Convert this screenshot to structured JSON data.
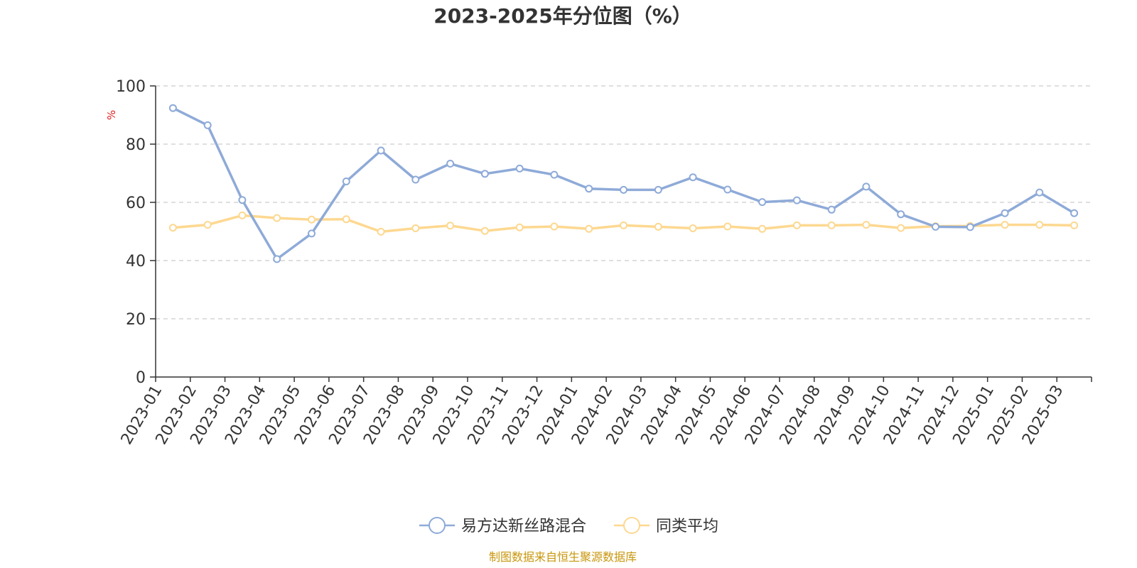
{
  "title": "2023-2025年分位图（%）",
  "source": "制图数据来自恒生聚源数据库",
  "chart_data": {
    "type": "line",
    "title": "2023-2025年分位图（%）",
    "ylabel": "%",
    "ylim": [
      0,
      100
    ],
    "yticks": [
      0,
      20,
      40,
      60,
      80,
      100
    ],
    "grid": true,
    "legend_position": "bottom",
    "categories": [
      "2023-01",
      "2023-02",
      "2023-03",
      "2023-04",
      "2023-05",
      "2023-06",
      "2023-07",
      "2023-08",
      "2023-09",
      "2023-10",
      "2023-11",
      "2023-12",
      "2024-01",
      "2024-02",
      "2024-03",
      "2024-04",
      "2024-05",
      "2024-06",
      "2024-07",
      "2024-08",
      "2024-09",
      "2024-10",
      "2024-11",
      "2024-12",
      "2025-01",
      "2025-02",
      "2025-03"
    ],
    "series": [
      {
        "name": "易方达新丝路混合",
        "color": "#8eaad8",
        "values": [
          92.4,
          86.5,
          60.8,
          40.5,
          49.3,
          67.2,
          77.8,
          67.8,
          73.3,
          69.8,
          71.6,
          69.5,
          64.7,
          64.3,
          64.3,
          68.6,
          64.4,
          60.1,
          60.7,
          57.5,
          65.4,
          55.9,
          51.6,
          51.5,
          56.3,
          63.4,
          56.3
        ]
      },
      {
        "name": "同类平均",
        "color": "#fdd890",
        "values": [
          51.3,
          52.3,
          55.5,
          54.6,
          54.1,
          54.2,
          49.9,
          51.1,
          52.0,
          50.2,
          51.4,
          51.7,
          50.9,
          52.1,
          51.6,
          51.1,
          51.7,
          50.9,
          52.1,
          52.1,
          52.3,
          51.2,
          51.8,
          51.9,
          52.3,
          52.3,
          52.1
        ]
      }
    ]
  }
}
